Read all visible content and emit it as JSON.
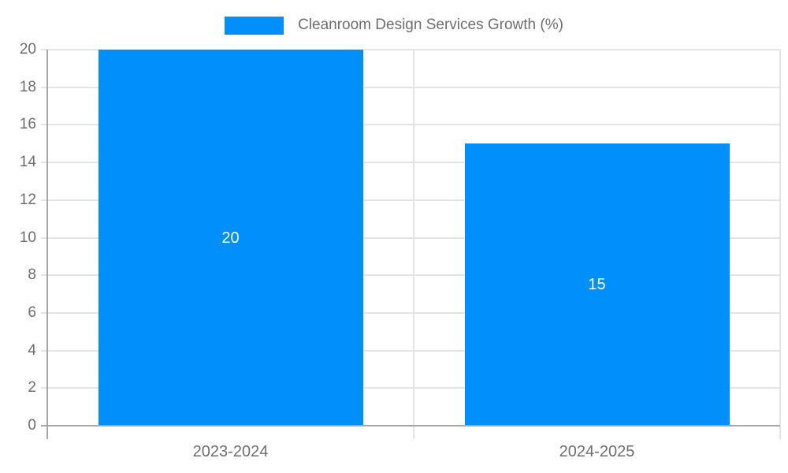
{
  "chart_data": {
    "type": "bar",
    "title": "Cleanroom Design Services Growth (%)",
    "categories": [
      "2023-2024",
      "2024-2025"
    ],
    "series": [
      {
        "name": "Cleanroom Design Services Growth (%)",
        "values": [
          20,
          15
        ]
      }
    ],
    "value_labels": [
      "20",
      "15"
    ],
    "xlabel": "",
    "ylabel": "",
    "ylim": [
      0,
      20
    ],
    "ytick_step": 2,
    "ytick_labels": [
      "0",
      "2",
      "4",
      "6",
      "8",
      "10",
      "12",
      "14",
      "16",
      "18",
      "20"
    ],
    "grid": true,
    "legend_position": "top"
  },
  "legend": {
    "label": "Cleanroom Design Services Growth (%)"
  },
  "colors": {
    "bar": "#008FFB",
    "value_label": "#FFFFFF",
    "axis_label": "#6E6E6E",
    "legend_label": "#6E6E6E",
    "gridline": "#E4E4E4",
    "axis_line": "#A6A6A6",
    "background": "#FFFFFF"
  }
}
